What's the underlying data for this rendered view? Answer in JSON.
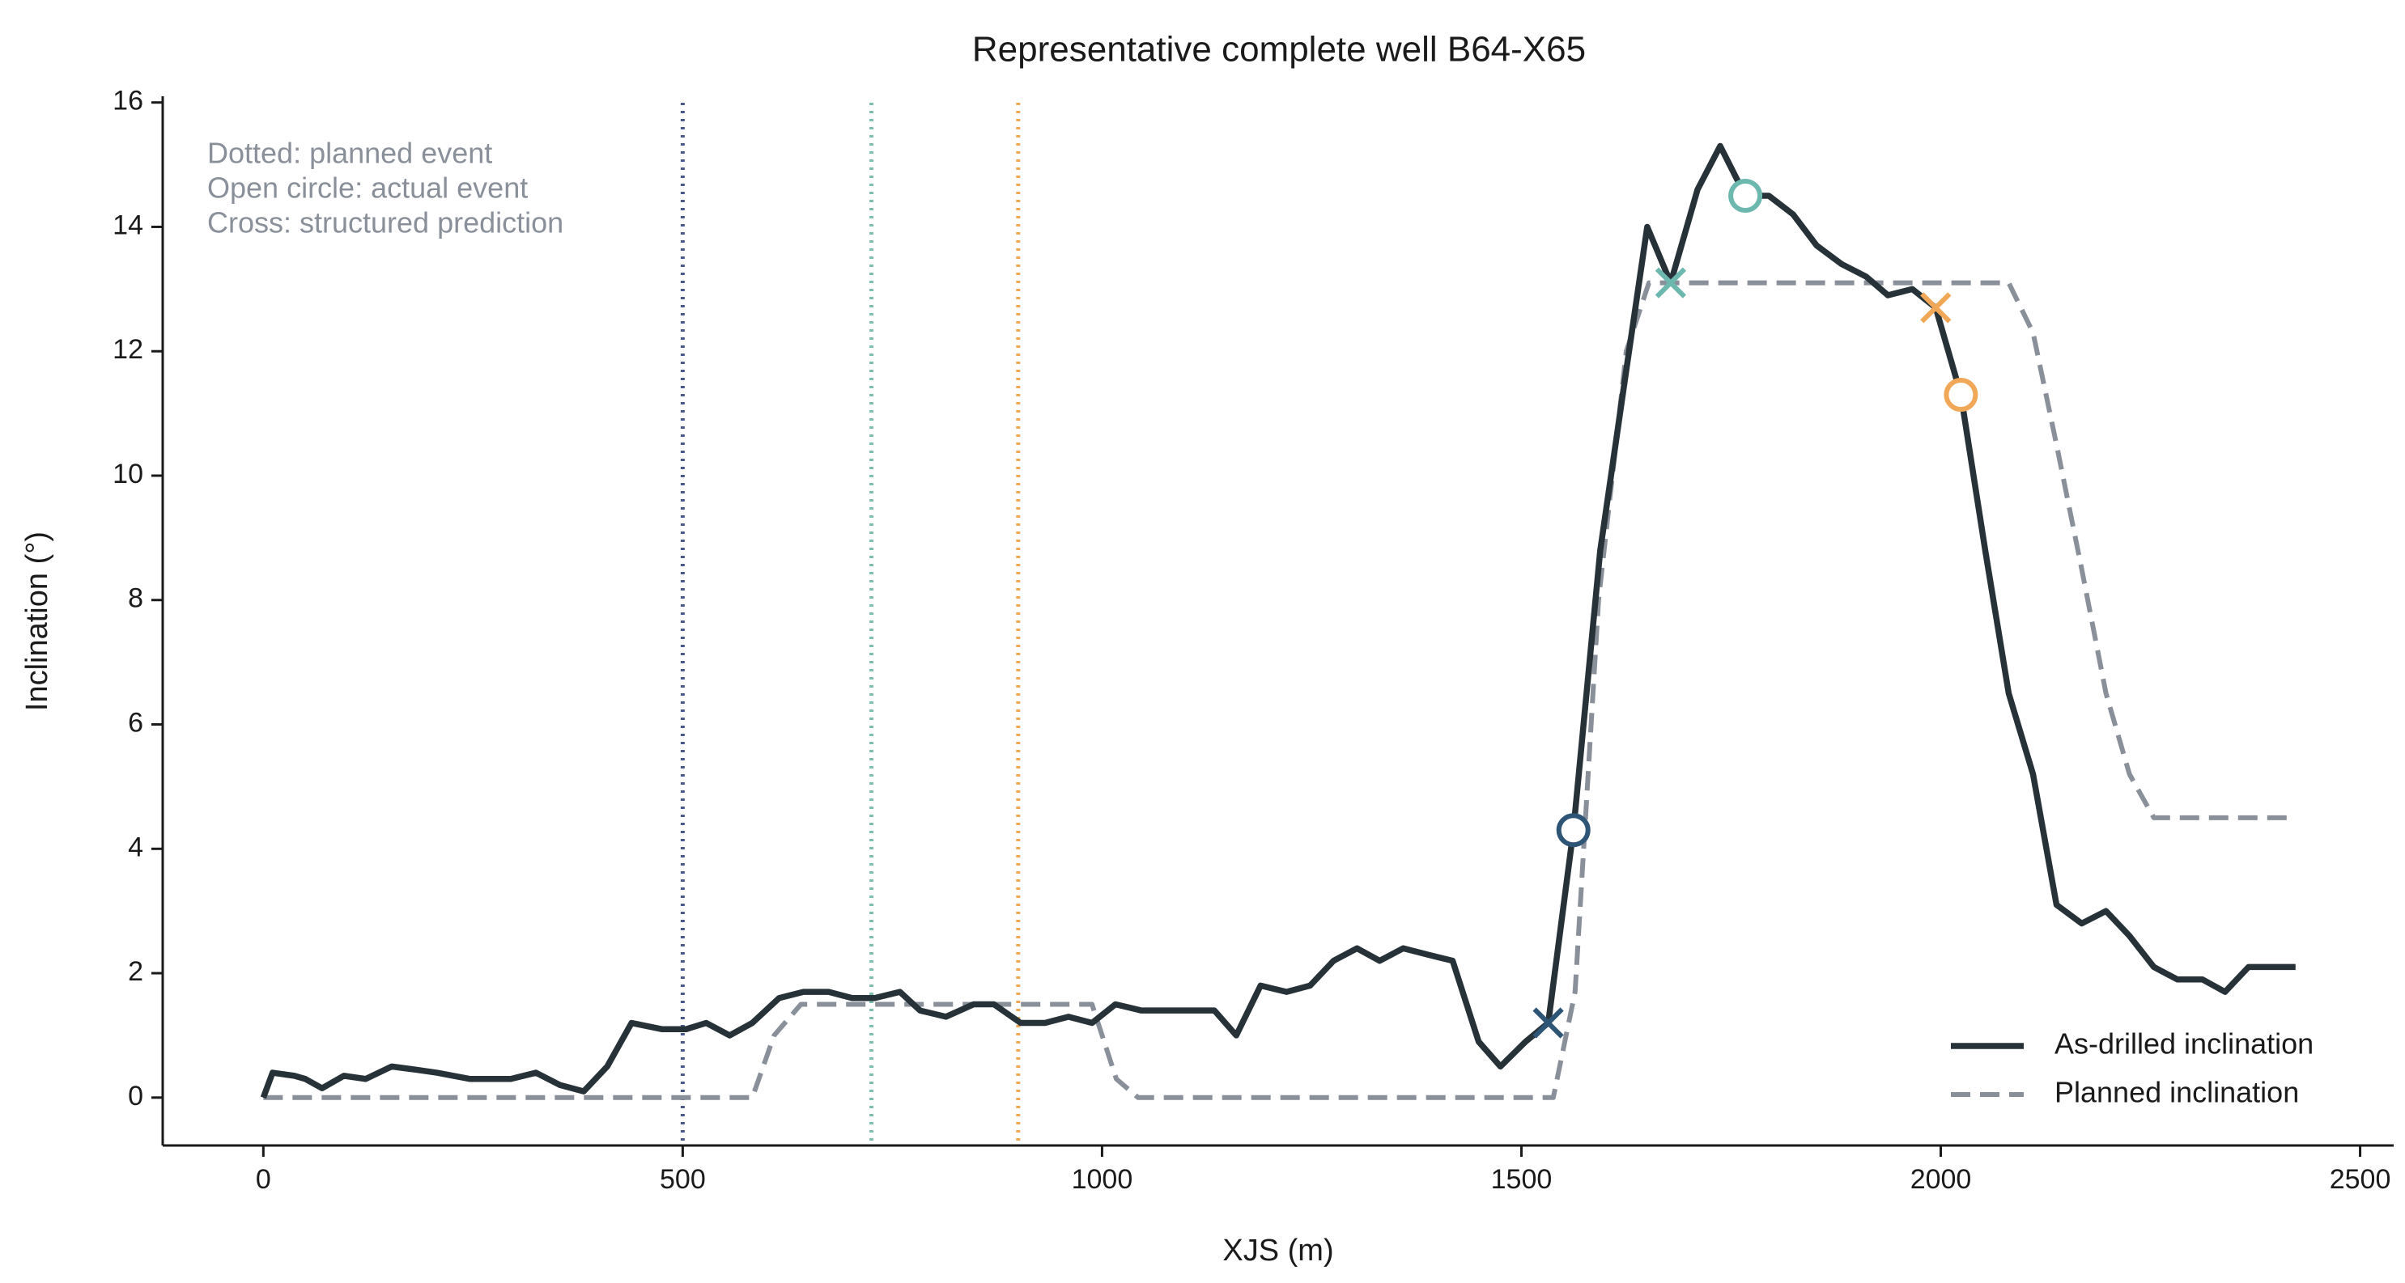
{
  "chart_data": {
    "type": "line",
    "title": "Representative complete well B64-X65",
    "x_label": "XJS (m)",
    "y_label": "Inclination (°)",
    "annotations": [
      "Dotted: planned event",
      "Open circle: actual event",
      "Cross: structured prediction"
    ],
    "xlim": [
      -120,
      2540
    ],
    "ylim": [
      -0.77,
      16.1
    ],
    "xticks": [
      0,
      500,
      1000,
      1500,
      2000,
      2500
    ],
    "yticks": [
      0,
      2,
      4,
      6,
      8,
      10,
      12,
      14,
      16
    ],
    "legend": "lower right",
    "series": [
      {
        "name": "As-drilled inclination",
        "color": "#263238",
        "style": "solid",
        "x": [
          0,
          11,
          37,
          50,
          70,
          96,
          122,
          153,
          181,
          207,
          246,
          295,
          325,
          354,
          382,
          410,
          439,
          475,
          504,
          528,
          556,
          583,
          615,
          644,
          674,
          702,
          729,
          759,
          783,
          814,
          847,
          871,
          903,
          932,
          960,
          988,
          1016,
          1047,
          1134,
          1160,
          1189,
          1220,
          1248,
          1276,
          1304,
          1331,
          1359,
          1388,
          1418,
          1449,
          1475,
          1505,
          1532,
          1562,
          1594,
          1624,
          1650,
          1678,
          1710,
          1737,
          1767,
          1795,
          1824,
          1852,
          1882,
          1911,
          1937,
          1966,
          1994,
          2024,
          2053,
          2081,
          2110,
          2138,
          2168,
          2197,
          2225,
          2254,
          2282,
          2312,
          2339,
          2367,
          2423
        ],
        "values": [
          0,
          0.4,
          0.35,
          0.3,
          0.15,
          0.35,
          0.3,
          0.5,
          0.45,
          0.4,
          0.3,
          0.3,
          0.4,
          0.2,
          0.1,
          0.5,
          1.2,
          1.1,
          1.1,
          1.2,
          1.0,
          1.2,
          1.6,
          1.7,
          1.7,
          1.6,
          1.6,
          1.7,
          1.4,
          1.3,
          1.5,
          1.5,
          1.2,
          1.2,
          1.3,
          1.2,
          1.5,
          1.4,
          1.4,
          1.0,
          1.8,
          1.7,
          1.8,
          2.2,
          2.4,
          2.2,
          2.4,
          2.3,
          2.2,
          0.9,
          0.5,
          0.9,
          1.2,
          4.3,
          8.8,
          11.6,
          14.0,
          13.1,
          14.6,
          15.3,
          14.5,
          14.5,
          14.2,
          13.7,
          13.4,
          13.2,
          12.9,
          13.0,
          12.7,
          11.3,
          8.8,
          6.5,
          5.2,
          3.1,
          2.8,
          3.0,
          2.6,
          2.1,
          1.9,
          1.9,
          1.7,
          2.1,
          2.1
        ]
      },
      {
        "name": "Planned inclination",
        "color": "#8a9099",
        "style": "dashed",
        "x": [
          0,
          583,
          609,
          641,
          988,
          1017,
          1043,
          1538,
          1564,
          1592,
          1625,
          1652,
          2081,
          2110,
          2138,
          2168,
          2197,
          2225,
          2254,
          2423
        ],
        "values": [
          0,
          0,
          1.0,
          1.5,
          1.5,
          0.3,
          0,
          0,
          1.7,
          8,
          12,
          13.1,
          13.1,
          12.3,
          10.5,
          8.5,
          6.5,
          5.2,
          4.5,
          4.5
        ]
      }
    ],
    "planned_events": [
      {
        "x": 500,
        "color": "#4a5a8a"
      },
      {
        "x": 725,
        "color": "#7fbfb0"
      },
      {
        "x": 900,
        "color": "#f0a858"
      }
    ],
    "actual_events": [
      {
        "x": 1562,
        "y": 4.3,
        "color": "#2e5476"
      },
      {
        "x": 1767,
        "y": 14.5,
        "color": "#6cb8ae"
      },
      {
        "x": 2024,
        "y": 11.3,
        "color": "#f0a858"
      }
    ],
    "predicted_events": [
      {
        "x": 1532,
        "y": 1.2,
        "color": "#2e5476"
      },
      {
        "x": 1678,
        "y": 13.1,
        "color": "#6cb8ae"
      },
      {
        "x": 1994,
        "y": 12.7,
        "color": "#f0a858"
      }
    ]
  }
}
